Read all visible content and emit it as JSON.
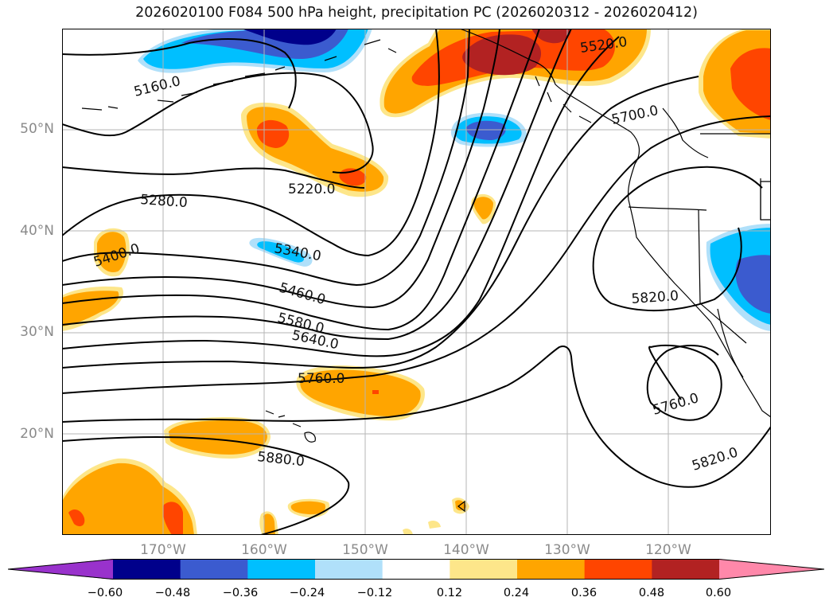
{
  "title": "2026020100 F084 500 hPa height, precipitation PC (2026020312 - 2026020412)",
  "axes": {
    "lat_labels": [
      "50°N",
      "40°N",
      "30°N",
      "20°N"
    ],
    "lon_labels": [
      "170°W",
      "160°W",
      "150°W",
      "140°W",
      "130°W",
      "120°W"
    ]
  },
  "contours": {
    "labels": [
      "5160.0",
      "5220.0",
      "5280.0",
      "5340.0",
      "5400.0",
      "5460.0",
      "5520.0",
      "5580.0",
      "5640.0",
      "5700.0",
      "5760.0",
      "5820.0",
      "5880.0",
      "5760.0",
      "5820.0"
    ]
  },
  "colorbar": {
    "ticks": [
      "−0.60",
      "−0.48",
      "−0.36",
      "−0.24",
      "−0.12",
      "0.12",
      "0.24",
      "0.36",
      "0.48",
      "0.60"
    ],
    "colors": [
      "#9932cc",
      "#00008b",
      "#3b5bcf",
      "#00bfff",
      "#b0e0fa",
      "#ffffff",
      "#fde68a",
      "#ffa500",
      "#ff4500",
      "#b22222",
      "#ff88aa"
    ]
  },
  "colors": {
    "pos_light": "#fde68a",
    "pos_med": "#ffa500",
    "pos_high": "#ff4500",
    "pos_max": "#b22222",
    "neg_light": "#b0e0fa",
    "neg_med": "#00bfff",
    "neg_high": "#3b5bcf",
    "neg_max": "#00008b"
  }
}
